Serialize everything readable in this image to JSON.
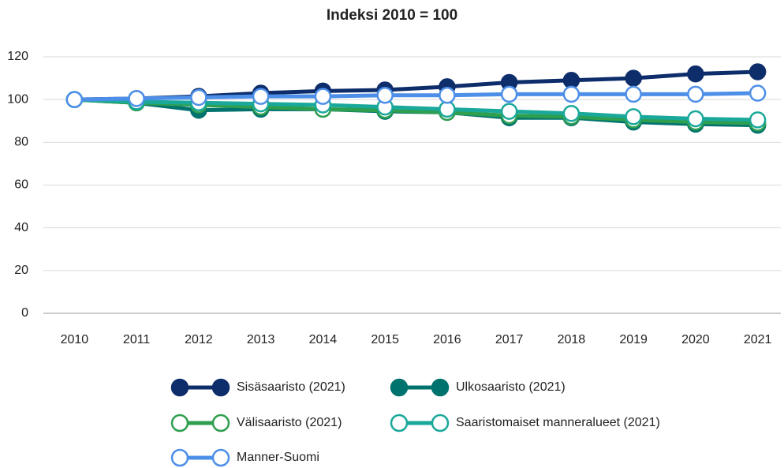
{
  "chart_data": {
    "type": "line",
    "title": "Indeksi 2010 = 100",
    "categories": [
      "2010",
      "2011",
      "2012",
      "2013",
      "2014",
      "2015",
      "2016",
      "2017",
      "2018",
      "2019",
      "2020",
      "2021"
    ],
    "ylim": [
      0,
      120
    ],
    "yticks": [
      0,
      20,
      40,
      60,
      80,
      100,
      120
    ],
    "grid": true,
    "series": [
      {
        "name": "Sisäsaaristo (2021)",
        "color": "#0d2d6b",
        "marker": "filled",
        "values": [
          100,
          100.5,
          101.5,
          103,
          104,
          104.5,
          106,
          108,
          109,
          110,
          112,
          113
        ]
      },
      {
        "name": "Ulkosaaristo (2021)",
        "color": "#00736e",
        "marker": "filled",
        "values": [
          100,
          98.5,
          95,
          95.5,
          95.5,
          94.5,
          94,
          91.5,
          91.5,
          89.5,
          88.5,
          88
        ]
      },
      {
        "name": "Välisaaristo (2021)",
        "color": "#2e9e4f",
        "marker": "hollow",
        "values": [
          100,
          98.5,
          97.5,
          96.5,
          95.5,
          95,
          94,
          92.5,
          92,
          90.5,
          89.5,
          89
        ]
      },
      {
        "name": "Saaristomaiset manneralueet (2021)",
        "color": "#1aa89a",
        "marker": "hollow",
        "values": [
          100,
          99,
          98.5,
          98,
          97.5,
          96.5,
          95.5,
          94.5,
          93.5,
          92,
          91,
          90.5
        ]
      },
      {
        "name": "Manner-Suomi",
        "color": "#4d8fe8",
        "marker": "hollow",
        "values": [
          100,
          100.5,
          101,
          101.5,
          101.5,
          102,
          102,
          102.5,
          102.5,
          102.5,
          102.5,
          103
        ]
      }
    ]
  }
}
